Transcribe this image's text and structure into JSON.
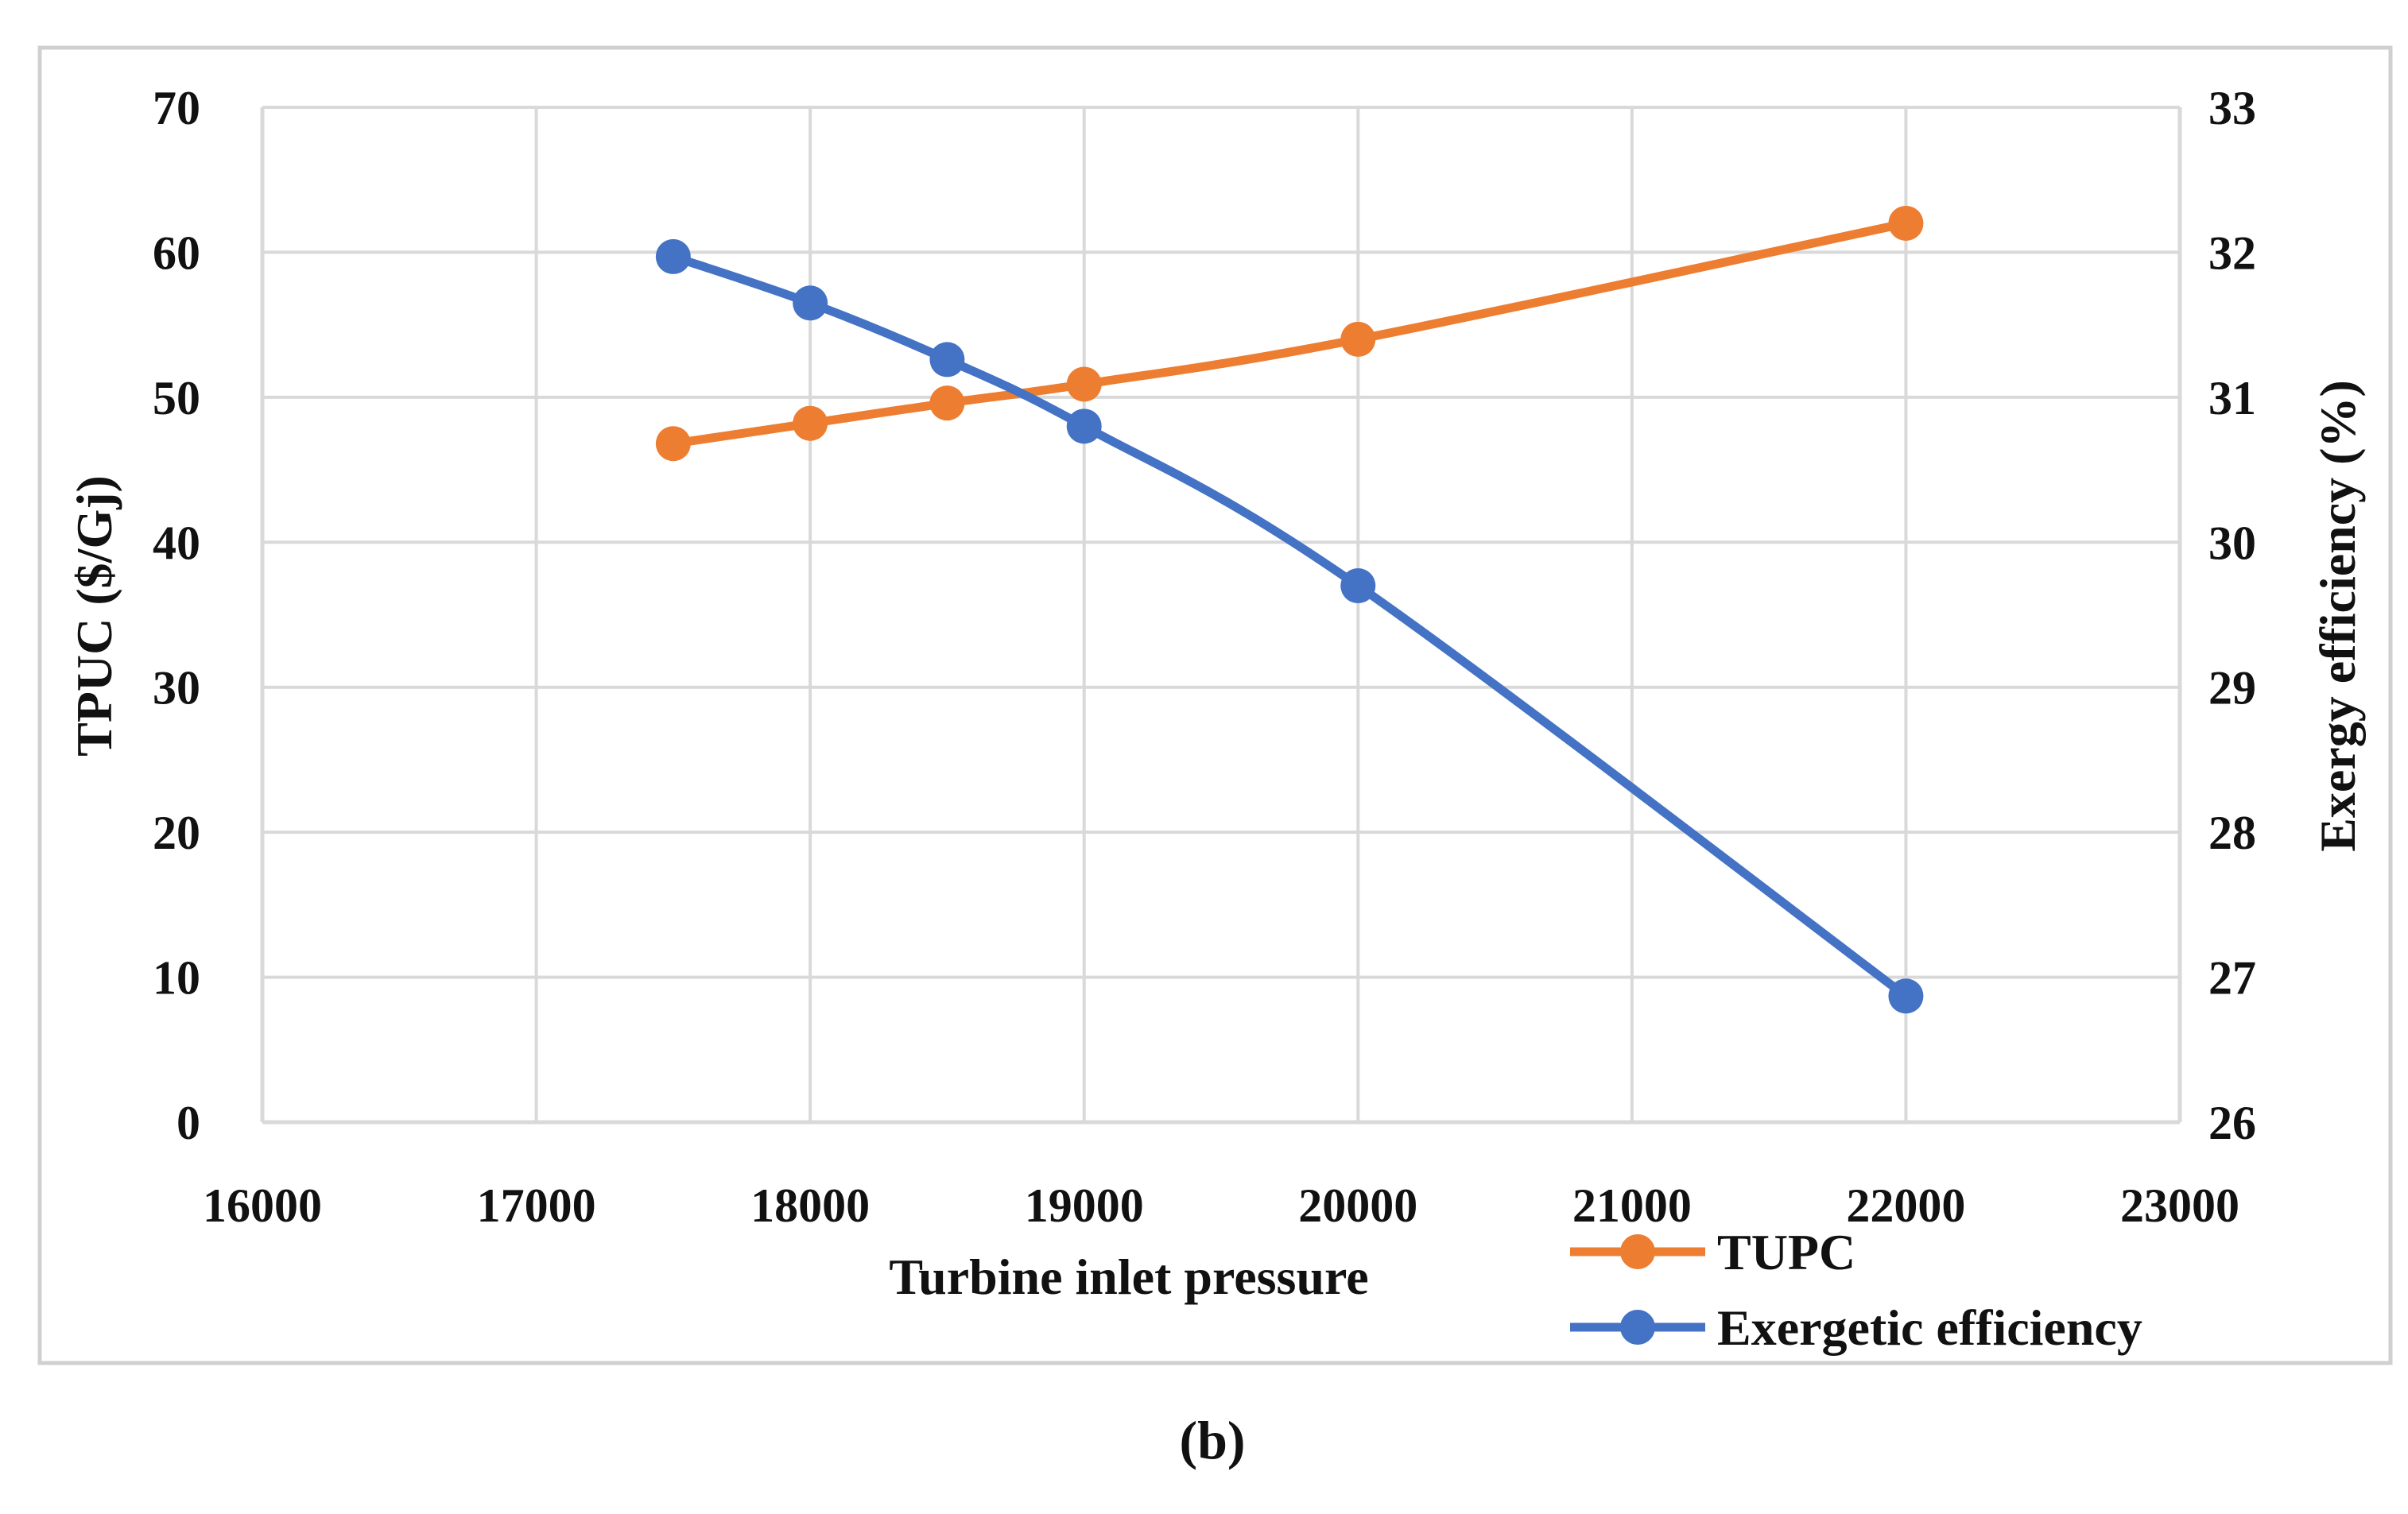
{
  "chart_data": {
    "type": "line",
    "title": "",
    "caption": "(b)",
    "xlabel": "Turbine inlet pressure",
    "ylabel": "TPUC ($/Gj)",
    "y2label": "Exergy efficiency (%)",
    "xlim": [
      16000,
      23000
    ],
    "ylim": [
      0,
      70
    ],
    "y2lim": [
      26,
      33
    ],
    "x_ticks": [
      16000,
      17000,
      18000,
      19000,
      20000,
      21000,
      22000,
      23000
    ],
    "y_ticks": [
      0,
      10,
      20,
      30,
      40,
      50,
      60,
      70
    ],
    "y2_ticks": [
      26,
      27,
      28,
      29,
      30,
      31,
      32,
      33
    ],
    "grid": true,
    "legend_position": "bottom-right",
    "series": [
      {
        "name": "TUPC",
        "axis": "left",
        "color": "#ED7D31",
        "x": [
          17500,
          18000,
          18500,
          19000,
          20000,
          22000
        ],
        "values": [
          46.8,
          48.2,
          49.6,
          50.9,
          54.0,
          62.0
        ]
      },
      {
        "name": "Exergetic efficiency",
        "axis": "right",
        "color": "#4472C4",
        "x": [
          17500,
          18000,
          18500,
          19000,
          20000,
          22000
        ],
        "values": [
          31.97,
          31.65,
          31.26,
          30.8,
          29.7,
          26.87
        ]
      }
    ]
  }
}
